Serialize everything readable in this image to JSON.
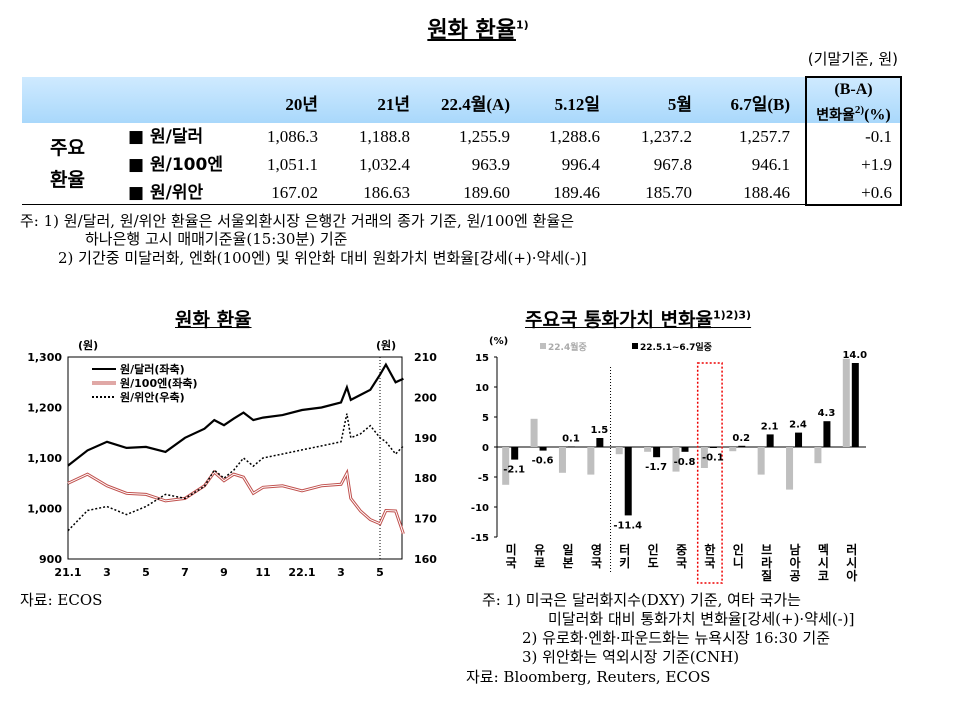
{
  "title": "원화 환율",
  "title_sup": "1)",
  "unit": "(기말기준, 원)",
  "table": {
    "headers": [
      "20년",
      "21년",
      "22.4월(A)",
      "5.12일",
      "5월",
      "6.7일(B)"
    ],
    "change_header_1": "(B-A)",
    "change_header_2": "변화율",
    "change_header_sup": "2)",
    "change_header_unit": "(%)",
    "group_label_1": "주요",
    "group_label_2": "환율",
    "rows": [
      {
        "label": "■ 원/달러",
        "values": [
          "1,086.3",
          "1,188.8",
          "1,255.9",
          "1,288.6",
          "1,237.2",
          "1,257.7"
        ],
        "change": "-0.1"
      },
      {
        "label": "■ 원/100엔",
        "values": [
          "1,051.1",
          "1,032.4",
          "963.9",
          "996.4",
          "967.8",
          "946.1"
        ],
        "change": "+1.9"
      },
      {
        "label": "■ 원/위안",
        "values": [
          "167.02",
          "186.63",
          "189.60",
          "189.46",
          "185.70",
          "188.46"
        ],
        "change": "+0.6"
      }
    ]
  },
  "notes": [
    "주: 1) 원/달러, 원/위안 환율은 서울외환시장 은행간 거래의 종가 기준, 원/100엔 환율은",
    "하나은행 고시 매매기준율(15:30분) 기준",
    "2) 기간중 미달러화, 엔화(100엔) 및 위안화 대비 원화가치 변화율[강세(+)·약세(-)]"
  ],
  "left_source": "자료: ECOS",
  "right_notes": [
    "주: 1) 미국은 달러화지수(DXY) 기준, 여타 국가는",
    "미달러화 대비 통화가치 변화율[강세(+)·약세(-)]",
    "2) 유로화·엔화·파운드화는 뉴욕시장 16:30 기준",
    "3) 위안화는 역외시장 기준(CNH)"
  ],
  "right_source": "자료: Bloomberg, Reuters, ECOS",
  "chart_data": [
    {
      "type": "line",
      "title": "원화 환율",
      "left_unit": "(원)",
      "right_unit": "(원)",
      "ylim_left": [
        900,
        1300
      ],
      "yticks_left": [
        "900",
        "1,000",
        "1,100",
        "1,200",
        "1,300"
      ],
      "ylim_right": [
        160,
        210
      ],
      "yticks_right": [
        "160",
        "170",
        "180",
        "190",
        "200",
        "210"
      ],
      "xticks": [
        "21.1",
        "3",
        "5",
        "7",
        "9",
        "11",
        "22.1",
        "3",
        "5"
      ],
      "legend_position": "top-left",
      "marker_line": "22.5",
      "x": [
        "21.1",
        "21.2",
        "21.3",
        "21.4",
        "21.5",
        "21.6",
        "21.7",
        "21.8",
        "21.8.5",
        "21.9",
        "21.9.5",
        "21.10",
        "21.10.5",
        "21.11",
        "21.12",
        "22.1",
        "22.2",
        "22.3",
        "22.3.3",
        "22.3.5",
        "22.4",
        "22.4.5",
        "22.5",
        "22.5.3",
        "22.5.8",
        "22.6.2"
      ],
      "xnum": [
        0,
        1,
        2,
        3,
        4,
        5,
        6,
        7,
        7.5,
        8,
        8.5,
        9,
        9.5,
        10,
        11,
        12,
        13,
        14,
        14.3,
        14.5,
        15,
        15.5,
        16,
        16.3,
        16.8,
        17.2
      ],
      "series": [
        {
          "name": "원/달러(좌축)",
          "axis": "left",
          "color": "#000000",
          "style": "solid",
          "values": [
            1085,
            1115,
            1132,
            1120,
            1122,
            1112,
            1140,
            1158,
            1175,
            1165,
            1178,
            1190,
            1175,
            1180,
            1185,
            1195,
            1200,
            1210,
            1240,
            1215,
            1225,
            1235,
            1265,
            1285,
            1250,
            1257
          ]
        },
        {
          "name": "원/100엔(좌축)",
          "axis": "left",
          "color": "#c0504d",
          "style": "double",
          "values": [
            1050,
            1068,
            1045,
            1030,
            1028,
            1015,
            1020,
            1045,
            1072,
            1055,
            1068,
            1062,
            1030,
            1042,
            1045,
            1035,
            1045,
            1048,
            1070,
            1020,
            995,
            978,
            970,
            996,
            995,
            950
          ]
        },
        {
          "name": "원/위안(우축)",
          "axis": "right",
          "color": "#000000",
          "style": "dotted",
          "values": [
            167,
            172,
            173,
            171,
            173,
            176,
            175,
            178,
            182,
            180,
            182,
            185,
            183,
            185,
            186,
            187,
            188,
            189,
            196,
            190,
            191,
            193,
            190,
            189,
            186,
            188
          ]
        }
      ]
    },
    {
      "type": "bar",
      "title": "주요국 통화가치 변화율",
      "title_sup": "1)2)3)",
      "ylabel": "(%)",
      "ylim": [
        -15,
        15
      ],
      "yticks": [
        "-15",
        "-10",
        "-5",
        "0",
        "5",
        "10",
        "15"
      ],
      "categories": [
        "미국",
        "유로",
        "일본",
        "영국",
        "터키",
        "인도",
        "중국",
        "한국",
        "인니",
        "브라질",
        "남아공",
        "멕시코",
        "러시아"
      ],
      "highlight": "한국",
      "series": [
        {
          "name": "22.4월중",
          "color": "#bfbfbf",
          "values": [
            -6.3,
            4.7,
            -4.3,
            -4.6,
            -1.2,
            -0.8,
            -4.1,
            -3.5,
            -0.7,
            -4.6,
            -7.1,
            -2.7,
            14.7
          ]
        },
        {
          "name": "22.5.1~6.7일중",
          "color": "#000000",
          "values": [
            -2.1,
            -0.6,
            0.1,
            1.5,
            -11.4,
            -1.7,
            -0.8,
            -0.1,
            0.2,
            2.1,
            2.4,
            4.3,
            14.0
          ]
        }
      ]
    }
  ]
}
